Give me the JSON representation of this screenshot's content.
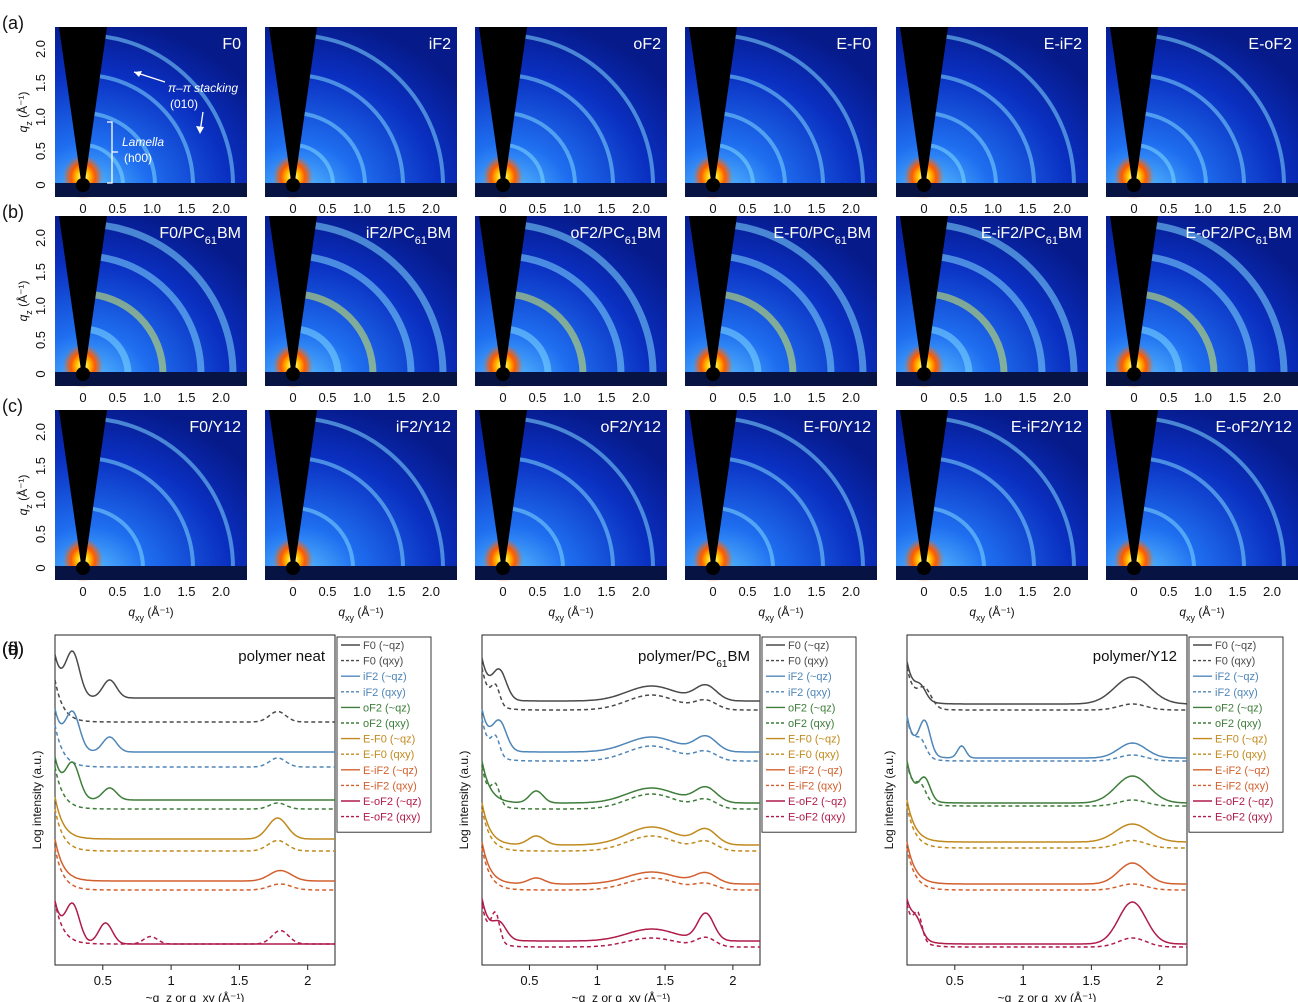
{
  "rows": [
    {
      "label": "(a)",
      "panels": [
        "F0",
        "iF2",
        "oF2",
        "E-F0",
        "E-iF2",
        "E-oF2"
      ]
    },
    {
      "label": "(b)",
      "panels": [
        "F0/PC61BM",
        "iF2/PC61BM",
        "oF2/PC61BM",
        "E-F0/PC61BM",
        "E-iF2/PC61BM",
        "E-oF2/PC61BM"
      ]
    },
    {
      "label": "(c)",
      "panels": [
        "F0/Y12",
        "iF2/Y12",
        "oF2/Y12",
        "E-F0/Y12",
        "E-iF2/Y12",
        "E-oF2/Y12"
      ]
    }
  ],
  "giwaxs_axes": {
    "x_ticks": [
      "0",
      "0.5",
      "1.0",
      "1.5",
      "2.0"
    ],
    "y_ticks": [
      "0",
      "0.5",
      "1.0",
      "1.5",
      "2.0"
    ],
    "xlabel": "q",
    "xlabel_sub": "xy",
    "xlabel_unit": " (Å⁻¹)",
    "ylabel": "q",
    "ylabel_sub": "z",
    "ylabel_unit": " (Å⁻¹)"
  },
  "annotations": {
    "pi_stacking": "π–π stacking",
    "pi_stacking_index": "(010)",
    "lamella": "Lamella",
    "lamella_index": "(h00)"
  },
  "chart_data": [
    {
      "type": "line",
      "panel": "(d)",
      "title": "polymer neat",
      "xlabel": "~q_z or q_xy (Å⁻¹)",
      "ylabel": "Log intensity (a.u.)",
      "xlim": [
        0.15,
        2.2
      ],
      "x_ticks": [
        "0.5",
        "1",
        "1.5",
        "2"
      ],
      "series": [
        {
          "name": "F0 (~qz)",
          "color": "#4a4a4a",
          "dash": false,
          "offset": 9.4,
          "peaks": [
            [
              0.28,
              1.4,
              0.05
            ],
            [
              0.55,
              0.6,
              0.05
            ]
          ]
        },
        {
          "name": "F0 (qxy)",
          "color": "#4a4a4a",
          "dash": true,
          "offset": 8.6,
          "peaks": [
            [
              1.78,
              0.35,
              0.06
            ]
          ]
        },
        {
          "name": "iF2 (~qz)",
          "color": "#4f86b8",
          "dash": false,
          "offset": 7.6,
          "peaks": [
            [
              0.28,
              1.2,
              0.05
            ],
            [
              0.55,
              0.5,
              0.05
            ]
          ]
        },
        {
          "name": "iF2 (qxy)",
          "color": "#4f86b8",
          "dash": true,
          "offset": 7.1,
          "peaks": [
            [
              1.78,
              0.3,
              0.06
            ]
          ]
        },
        {
          "name": "oF2 (~qz)",
          "color": "#3e7d3a",
          "dash": false,
          "offset": 6.0,
          "peaks": [
            [
              0.28,
              1.1,
              0.05
            ],
            [
              0.55,
              0.4,
              0.05
            ]
          ]
        },
        {
          "name": "oF2 (qxy)",
          "color": "#3e7d3a",
          "dash": true,
          "offset": 5.7,
          "peaks": [
            [
              1.78,
              0.2,
              0.06
            ]
          ]
        },
        {
          "name": "E-F0 (~qz)",
          "color": "#c18a1e",
          "dash": false,
          "offset": 4.7,
          "peaks": [
            [
              1.78,
              0.7,
              0.07
            ]
          ]
        },
        {
          "name": "E-F0 (qxy)",
          "color": "#c18a1e",
          "dash": true,
          "offset": 4.3,
          "peaks": [
            [
              1.78,
              0.35,
              0.07
            ]
          ]
        },
        {
          "name": "E-iF2 (~qz)",
          "color": "#d2602e",
          "dash": false,
          "offset": 3.3,
          "peaks": [
            [
              1.8,
              0.35,
              0.08
            ]
          ]
        },
        {
          "name": "E-iF2 (qxy)",
          "color": "#d2602e",
          "dash": true,
          "offset": 3.0,
          "peaks": [
            [
              1.8,
              0.2,
              0.08
            ]
          ]
        },
        {
          "name": "E-oF2 (~qz)",
          "color": "#b01c4a",
          "dash": false,
          "offset": 1.2,
          "peaks": [
            [
              0.28,
              1.2,
              0.05
            ],
            [
              0.52,
              0.7,
              0.05
            ]
          ]
        },
        {
          "name": "E-oF2 (qxy)",
          "color": "#b01c4a",
          "dash": true,
          "offset": 1.2,
          "peaks": [
            [
              0.85,
              0.25,
              0.05
            ],
            [
              1.8,
              0.45,
              0.06
            ]
          ]
        }
      ]
    },
    {
      "type": "line",
      "panel": "(e)",
      "title": "polymer/PC61BM",
      "xlabel": "~q_z or q_xy (Å⁻¹)",
      "ylabel": "Log intensity (a.u.)",
      "xlim": [
        0.15,
        2.2
      ],
      "x_ticks": [
        "0.5",
        "1",
        "1.5",
        "2"
      ],
      "series": [
        {
          "name": "F0 (~qz)",
          "color": "#4a4a4a",
          "dash": false,
          "offset": 9.3,
          "peaks": [
            [
              0.28,
              0.9,
              0.05
            ],
            [
              1.4,
              0.5,
              0.18
            ],
            [
              1.8,
              0.5,
              0.08
            ]
          ]
        },
        {
          "name": "F0 (qxy)",
          "color": "#4a4a4a",
          "dash": true,
          "offset": 9.0,
          "peaks": [
            [
              0.25,
              0.6,
              0.03
            ],
            [
              1.4,
              0.5,
              0.18
            ],
            [
              1.8,
              0.3,
              0.08
            ]
          ]
        },
        {
          "name": "iF2 (~qz)",
          "color": "#4f86b8",
          "dash": false,
          "offset": 7.6,
          "peaks": [
            [
              0.28,
              0.9,
              0.05
            ],
            [
              1.4,
              0.5,
              0.18
            ],
            [
              1.8,
              0.5,
              0.08
            ]
          ]
        },
        {
          "name": "iF2 (qxy)",
          "color": "#4f86b8",
          "dash": true,
          "offset": 7.3,
          "peaks": [
            [
              0.25,
              0.6,
              0.03
            ],
            [
              1.4,
              0.5,
              0.18
            ],
            [
              1.8,
              0.3,
              0.08
            ]
          ]
        },
        {
          "name": "oF2 (~qz)",
          "color": "#3e7d3a",
          "dash": false,
          "offset": 5.9,
          "peaks": [
            [
              0.55,
              0.4,
              0.05
            ],
            [
              1.4,
              0.5,
              0.18
            ],
            [
              1.8,
              0.5,
              0.08
            ]
          ]
        },
        {
          "name": "oF2 (qxy)",
          "color": "#3e7d3a",
          "dash": true,
          "offset": 5.7,
          "peaks": [
            [
              0.25,
              0.6,
              0.03
            ],
            [
              1.4,
              0.5,
              0.18
            ],
            [
              1.8,
              0.3,
              0.08
            ]
          ]
        },
        {
          "name": "E-F0 (~qz)",
          "color": "#c18a1e",
          "dash": false,
          "offset": 4.5,
          "peaks": [
            [
              0.55,
              0.3,
              0.06
            ],
            [
              1.4,
              0.6,
              0.18
            ],
            [
              1.8,
              0.5,
              0.08
            ]
          ]
        },
        {
          "name": "E-F0 (qxy)",
          "color": "#c18a1e",
          "dash": true,
          "offset": 4.3,
          "peaks": [
            [
              1.4,
              0.5,
              0.18
            ],
            [
              1.8,
              0.3,
              0.08
            ]
          ]
        },
        {
          "name": "E-iF2 (~qz)",
          "color": "#d2602e",
          "dash": false,
          "offset": 3.2,
          "peaks": [
            [
              0.55,
              0.2,
              0.06
            ],
            [
              1.4,
              0.4,
              0.18
            ],
            [
              1.8,
              0.35,
              0.08
            ]
          ]
        },
        {
          "name": "E-iF2 (qxy)",
          "color": "#d2602e",
          "dash": true,
          "offset": 3.0,
          "peaks": [
            [
              1.4,
              0.4,
              0.18
            ],
            [
              1.8,
              0.2,
              0.08
            ]
          ]
        },
        {
          "name": "E-oF2 (~qz)",
          "color": "#b01c4a",
          "dash": false,
          "offset": 1.3,
          "peaks": [
            [
              0.28,
              0.5,
              0.05
            ],
            [
              1.4,
              0.4,
              0.18
            ],
            [
              1.8,
              0.9,
              0.06
            ]
          ]
        },
        {
          "name": "E-oF2 (qxy)",
          "color": "#b01c4a",
          "dash": true,
          "offset": 1.1,
          "peaks": [
            [
              0.25,
              0.9,
              0.03
            ],
            [
              1.4,
              0.3,
              0.18
            ],
            [
              1.8,
              0.3,
              0.07
            ]
          ]
        }
      ]
    },
    {
      "type": "line",
      "panel": "(f)",
      "title": "polymer/Y12",
      "xlabel": "~q_z or q_xy (Å⁻¹)",
      "ylabel": "Log intensity (a.u.)",
      "xlim": [
        0.15,
        2.2
      ],
      "x_ticks": [
        "0.5",
        "1",
        "1.5",
        "2"
      ],
      "series": [
        {
          "name": "F0 (~qz)",
          "color": "#4a4a4a",
          "dash": false,
          "offset": 9.2,
          "peaks": [
            [
              0.25,
              0.4,
              0.04
            ],
            [
              1.8,
              0.9,
              0.13
            ]
          ]
        },
        {
          "name": "F0 (qxy)",
          "color": "#4a4a4a",
          "dash": true,
          "offset": 9.0,
          "peaks": [
            [
              0.28,
              0.6,
              0.05
            ],
            [
              1.8,
              0.2,
              0.1
            ]
          ]
        },
        {
          "name": "iF2 (~qz)",
          "color": "#4f86b8",
          "dash": false,
          "offset": 7.4,
          "peaks": [
            [
              0.28,
              1.1,
              0.04
            ],
            [
              0.55,
              0.4,
              0.03
            ],
            [
              1.8,
              0.5,
              0.1
            ]
          ]
        },
        {
          "name": "iF2 (qxy)",
          "color": "#4f86b8",
          "dash": true,
          "offset": 7.3,
          "peaks": [
            [
              0.25,
              0.5,
              0.04
            ],
            [
              1.8,
              0.2,
              0.1
            ]
          ]
        },
        {
          "name": "oF2 (~qz)",
          "color": "#3e7d3a",
          "dash": false,
          "offset": 5.9,
          "peaks": [
            [
              0.28,
              0.7,
              0.04
            ],
            [
              1.8,
              0.9,
              0.12
            ]
          ]
        },
        {
          "name": "oF2 (qxy)",
          "color": "#3e7d3a",
          "dash": true,
          "offset": 5.8,
          "peaks": [
            [
              0.25,
              0.5,
              0.04
            ],
            [
              1.8,
              0.2,
              0.1
            ]
          ]
        },
        {
          "name": "E-F0 (~qz)",
          "color": "#c18a1e",
          "dash": false,
          "offset": 4.6,
          "peaks": [
            [
              1.8,
              0.6,
              0.12
            ]
          ]
        },
        {
          "name": "E-F0 (qxy)",
          "color": "#c18a1e",
          "dash": true,
          "offset": 4.4,
          "peaks": [
            [
              1.8,
              0.25,
              0.1
            ]
          ]
        },
        {
          "name": "E-iF2 (~qz)",
          "color": "#d2602e",
          "dash": false,
          "offset": 3.2,
          "peaks": [
            [
              1.8,
              0.7,
              0.1
            ]
          ]
        },
        {
          "name": "E-iF2 (qxy)",
          "color": "#d2602e",
          "dash": true,
          "offset": 3.0,
          "peaks": [
            [
              1.8,
              0.2,
              0.1
            ]
          ]
        },
        {
          "name": "E-oF2 (~qz)",
          "color": "#b01c4a",
          "dash": false,
          "offset": 1.2,
          "peaks": [
            [
              0.22,
              0.5,
              0.04
            ],
            [
              1.8,
              1.4,
              0.1
            ]
          ]
        },
        {
          "name": "E-oF2 (qxy)",
          "color": "#b01c4a",
          "dash": true,
          "offset": 1.1,
          "peaks": [
            [
              0.23,
              0.8,
              0.03
            ],
            [
              1.8,
              0.3,
              0.1
            ]
          ]
        }
      ]
    }
  ]
}
